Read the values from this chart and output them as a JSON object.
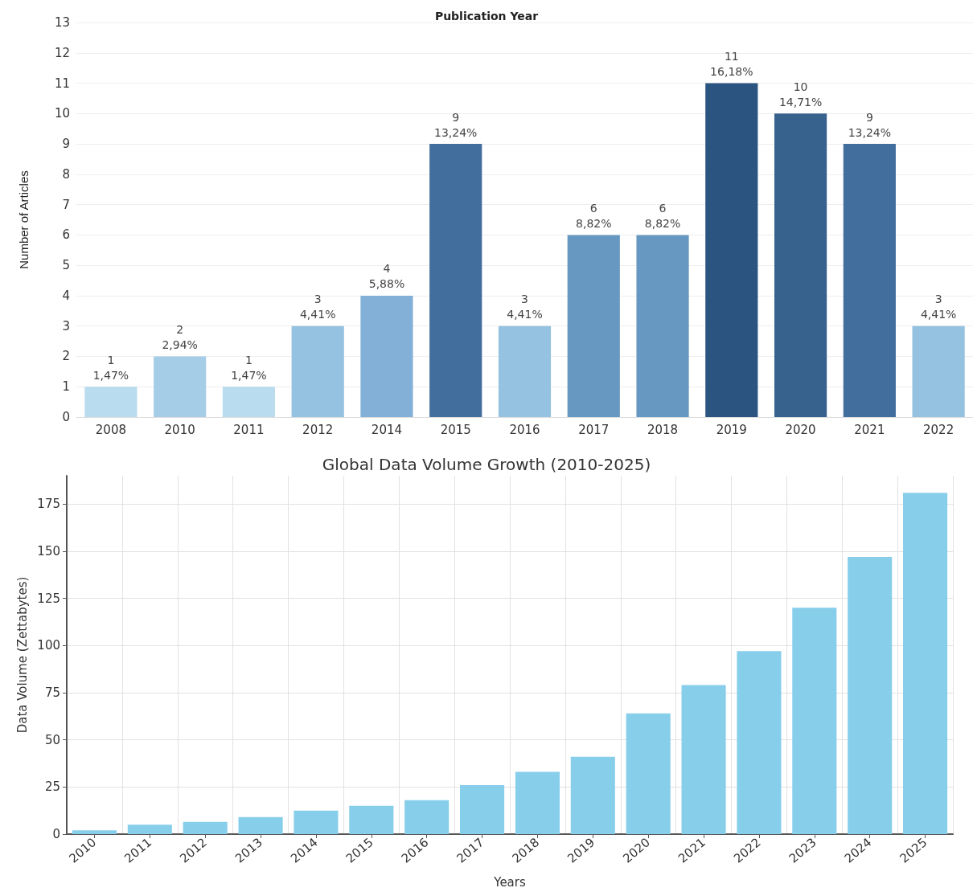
{
  "chart_data": [
    {
      "type": "bar",
      "title": "Publication Year",
      "ylabel": "Number of Articles",
      "categories": [
        "2008",
        "2010",
        "2011",
        "2012",
        "2014",
        "2015",
        "2016",
        "2017",
        "2018",
        "2019",
        "2020",
        "2021",
        "2022"
      ],
      "values": [
        1,
        2,
        1,
        3,
        4,
        9,
        3,
        6,
        6,
        11,
        10,
        9,
        3
      ],
      "colors": [
        "#b9dcee",
        "#a6cde8",
        "#b9dcee",
        "#94c2e0",
        "#82b0d6",
        "#416e9c",
        "#94c2e0",
        "#6798c1",
        "#6798c1",
        "#2b5580",
        "#37628e",
        "#416e9c",
        "#94c2e0"
      ],
      "value_labels": [
        "1\n1,47%",
        "2\n2,94%",
        "1\n1,47%",
        "3\n4,41%",
        "4\n5,88%",
        "9\n13,24%",
        "3\n4,41%",
        "6\n8,82%",
        "6\n8,82%",
        "11\n16,18%",
        "10\n14,71%",
        "9\n13,24%",
        "3\n4,41%"
      ],
      "ylim": [
        0,
        13
      ],
      "yticks": [
        0,
        1,
        2,
        3,
        4,
        5,
        6,
        7,
        8,
        9,
        10,
        11,
        12,
        13
      ],
      "grid": "y"
    },
    {
      "type": "bar",
      "title": "Global Data Volume Growth (2010-2025)",
      "xlabel": "Years",
      "ylabel": "Data Volume (Zettabytes)",
      "categories": [
        "2010",
        "2011",
        "2012",
        "2013",
        "2014",
        "2015",
        "2016",
        "2017",
        "2018",
        "2019",
        "2020",
        "2021",
        "2022",
        "2023",
        "2024",
        "2025"
      ],
      "values": [
        2,
        5,
        6.5,
        9,
        12.5,
        15,
        18,
        26,
        33,
        41,
        64,
        79,
        97,
        120,
        147,
        181
      ],
      "color": "#87ceeb",
      "ylim": [
        0,
        190
      ],
      "yticks": [
        0,
        25,
        50,
        75,
        100,
        125,
        150,
        175
      ],
      "grid": true
    }
  ]
}
